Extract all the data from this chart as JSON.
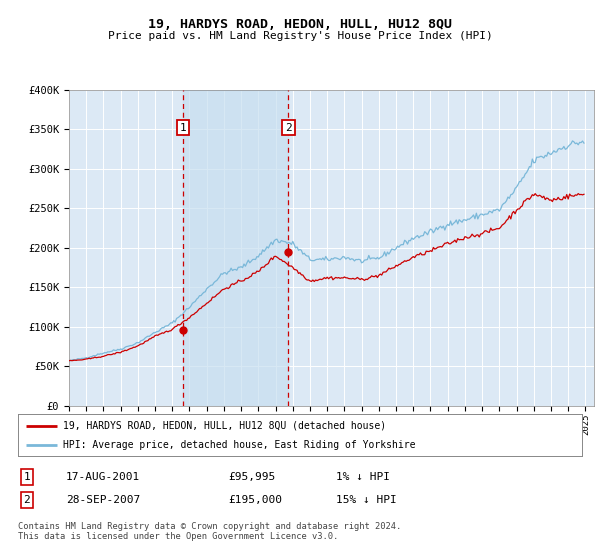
{
  "title": "19, HARDYS ROAD, HEDON, HULL, HU12 8QU",
  "subtitle": "Price paid vs. HM Land Registry's House Price Index (HPI)",
  "ylabel_ticks": [
    "£0",
    "£50K",
    "£100K",
    "£150K",
    "£200K",
    "£250K",
    "£300K",
    "£350K",
    "£400K"
  ],
  "ylim": [
    0,
    400000
  ],
  "xlim_start": 1995,
  "xlim_end": 2025.5,
  "background_color": "#dce9f5",
  "grid_color": "#ffffff",
  "sale_marker1": {
    "date_num": 2001.625,
    "price": 95995,
    "label": "1"
  },
  "sale_marker2": {
    "date_num": 2007.747,
    "price": 195000,
    "label": "2"
  },
  "legend_line1": "19, HARDYS ROAD, HEDON, HULL, HU12 8QU (detached house)",
  "legend_line2": "HPI: Average price, detached house, East Riding of Yorkshire",
  "table_row1": [
    "1",
    "17-AUG-2001",
    "£95,995",
    "1% ↓ HPI"
  ],
  "table_row2": [
    "2",
    "28-SEP-2007",
    "£195,000",
    "15% ↓ HPI"
  ],
  "footer": "Contains HM Land Registry data © Crown copyright and database right 2024.\nThis data is licensed under the Open Government Licence v3.0.",
  "hpi_color": "#7ab8d9",
  "price_color": "#cc0000",
  "marker_box_color": "#cc0000",
  "vline_color": "#cc0000",
  "shade_color": "#c8dff0"
}
